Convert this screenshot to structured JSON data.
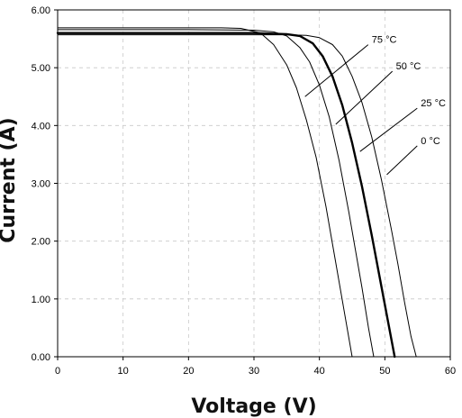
{
  "chart_data": {
    "type": "line",
    "title": "",
    "xlabel": "Voltage (V)",
    "ylabel": "Current (A)",
    "xlim": [
      0,
      60
    ],
    "ylim": [
      0,
      6
    ],
    "grid": true,
    "x_ticks": [
      0,
      10,
      20,
      30,
      40,
      50,
      60
    ],
    "x_tick_labels": [
      "0",
      "10",
      "20",
      "30",
      "40",
      "50",
      "60"
    ],
    "y_ticks": [
      0,
      1,
      2,
      3,
      4,
      5,
      6
    ],
    "y_tick_labels": [
      "0.00",
      "1.00",
      "2.00",
      "3.00",
      "4.00",
      "5.00",
      "6.00"
    ],
    "series": [
      {
        "name": "75 °C",
        "color": "#000000",
        "bold": false,
        "x": [
          0,
          10,
          20,
          25,
          28,
          31,
          33,
          35,
          36.5,
          38,
          39.5,
          41,
          42,
          43,
          44,
          45
        ],
        "y": [
          5.69,
          5.69,
          5.69,
          5.69,
          5.68,
          5.6,
          5.4,
          5.05,
          4.65,
          4.1,
          3.45,
          2.6,
          1.95,
          1.3,
          0.65,
          0
        ]
      },
      {
        "name": "50 °C",
        "color": "#000000",
        "bold": false,
        "x": [
          0,
          10,
          20,
          30,
          33,
          35,
          37,
          38.5,
          40,
          41.5,
          43,
          44.5,
          45.5,
          46.5,
          47.5,
          48.3
        ],
        "y": [
          5.66,
          5.66,
          5.66,
          5.65,
          5.62,
          5.55,
          5.35,
          5.1,
          4.7,
          4.15,
          3.4,
          2.5,
          1.85,
          1.2,
          0.5,
          0
        ]
      },
      {
        "name": "25 °C",
        "color": "#000000",
        "bold": true,
        "x": [
          0,
          10,
          20,
          30,
          35,
          37,
          39,
          40.5,
          42,
          43.5,
          45,
          46.5,
          48,
          49.5,
          50.5,
          51.5
        ],
        "y": [
          5.6,
          5.6,
          5.6,
          5.6,
          5.58,
          5.55,
          5.42,
          5.2,
          4.85,
          4.35,
          3.7,
          2.95,
          2.1,
          1.2,
          0.6,
          0
        ]
      },
      {
        "name": "0 °C",
        "color": "#000000",
        "bold": false,
        "x": [
          0,
          10,
          20,
          30,
          35,
          38,
          40,
          42,
          43.5,
          45,
          46.5,
          48,
          49.5,
          51,
          52,
          53,
          54,
          54.8
        ],
        "y": [
          5.57,
          5.57,
          5.57,
          5.57,
          5.57,
          5.56,
          5.52,
          5.4,
          5.2,
          4.85,
          4.4,
          3.8,
          3.05,
          2.2,
          1.6,
          0.95,
          0.35,
          0
        ]
      }
    ],
    "annotations": [
      {
        "text": "75 °C",
        "series": 0,
        "at_x": 37.8,
        "at_y": 4.5,
        "label_x": 48.0,
        "label_y": 5.43
      },
      {
        "text": "50 °C",
        "series": 1,
        "at_x": 42.5,
        "at_y": 4.02,
        "label_x": 51.7,
        "label_y": 4.97
      },
      {
        "text": "25 °C",
        "series": 2,
        "at_x": 46.2,
        "at_y": 3.55,
        "label_x": 55.5,
        "label_y": 4.33
      },
      {
        "text": "0 °C",
        "series": 3,
        "at_x": 50.3,
        "at_y": 3.15,
        "label_x": 55.5,
        "label_y": 3.68
      }
    ]
  }
}
